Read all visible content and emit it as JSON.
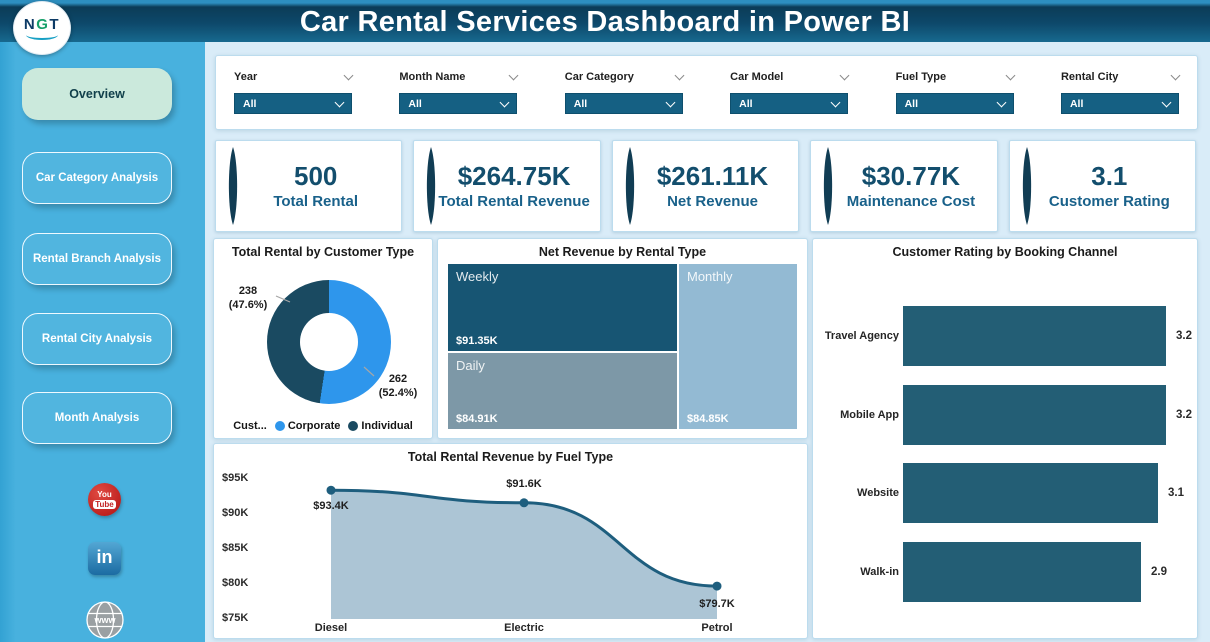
{
  "header": {
    "title": "Car Rental Services Dashboard in Power BI",
    "logo_parts": [
      "N",
      "G",
      "T"
    ]
  },
  "sidebar": {
    "nav_items": [
      {
        "label": "Overview",
        "active": true
      },
      {
        "label": "Car Category Analysis",
        "active": false
      },
      {
        "label": "Rental Branch Analysis",
        "active": false
      },
      {
        "label": "Rental City Analysis",
        "active": false
      },
      {
        "label": "Month Analysis",
        "active": false
      }
    ],
    "social_icons": [
      {
        "name": "youtube",
        "text_top": "You",
        "text_bottom": "Tube"
      },
      {
        "name": "linkedin",
        "text": "in"
      },
      {
        "name": "website-globe",
        "text": "www"
      }
    ]
  },
  "filters": {
    "items": [
      {
        "label": "Year",
        "value": "All"
      },
      {
        "label": "Month Name",
        "value": "All"
      },
      {
        "label": "Car Category",
        "value": "All"
      },
      {
        "label": "Car Model",
        "value": "All"
      },
      {
        "label": "Fuel Type",
        "value": "All"
      },
      {
        "label": "Rental City",
        "value": "All"
      }
    ]
  },
  "kpis": [
    {
      "value": "500",
      "label": "Total Rental"
    },
    {
      "value": "$264.75K",
      "label": "Total Rental Revenue"
    },
    {
      "value": "$261.11K",
      "label": "Net Revenue"
    },
    {
      "value": "$30.77K",
      "label": "Maintenance Cost"
    },
    {
      "value": "3.1",
      "label": "Customer Rating"
    }
  ],
  "chart_data": [
    {
      "id": "total-rental-by-customer-type",
      "type": "pie",
      "title": "Total Rental by Customer Type",
      "legend_title": "Cust...",
      "legend_position": "bottom",
      "donut_hole": true,
      "slices": [
        {
          "name": "Corporate",
          "value": 262,
          "pct": "52.4%",
          "color": "#2E96EC"
        },
        {
          "name": "Individual",
          "value": 238,
          "pct": "47.6%",
          "color": "#1A4A61"
        }
      ]
    },
    {
      "id": "net-revenue-by-rental-type",
      "type": "treemap",
      "title": "Net Revenue by Rental Type",
      "nodes": [
        {
          "name": "Weekly",
          "value": 91.35,
          "value_label": "$91.35K",
          "color": "#175573"
        },
        {
          "name": "Daily",
          "value": 84.91,
          "value_label": "$84.91K",
          "color": "#7D98A7"
        },
        {
          "name": "Monthly",
          "value": 84.85,
          "value_label": "$84.85K",
          "color": "#93BAD3"
        }
      ]
    },
    {
      "id": "customer-rating-by-booking-channel",
      "type": "bar",
      "title": "Customer Rating by Booking Channel",
      "orientation": "horizontal",
      "categories": [
        "Travel Agency",
        "Mobile App",
        "Website",
        "Walk-in"
      ],
      "values": [
        3.2,
        3.2,
        3.1,
        2.9
      ],
      "xlim": [
        0,
        3.2
      ],
      "grid": false,
      "bar_color": "#235E75"
    },
    {
      "id": "total-rental-revenue-by-fuel-type",
      "type": "area",
      "title": "Total Rental Revenue by Fuel Type",
      "categories": [
        "Diesel",
        "Electric",
        "Petrol"
      ],
      "values": [
        93.4,
        91.6,
        79.7
      ],
      "value_labels": [
        "$93.4K",
        "$91.6K",
        "$79.7K"
      ],
      "y_ticks": [
        "$95K",
        "$90K",
        "$85K",
        "$80K",
        "$75K"
      ],
      "ylim": [
        75,
        95
      ],
      "grid": false,
      "line_color": "#1E5E7E",
      "fill_color": "#A8C2D3"
    }
  ],
  "colors": {
    "header_dark": "#0D486A",
    "sidebar_blue": "#48B1DE",
    "content_bg": "#D9ECF8",
    "dropdown_dark": "#156083",
    "kpi_accent": "#113D54",
    "kpi_number": "#134E6D",
    "kpi_label": "#19618A",
    "active_nav_bg": "#CBE9DC"
  }
}
